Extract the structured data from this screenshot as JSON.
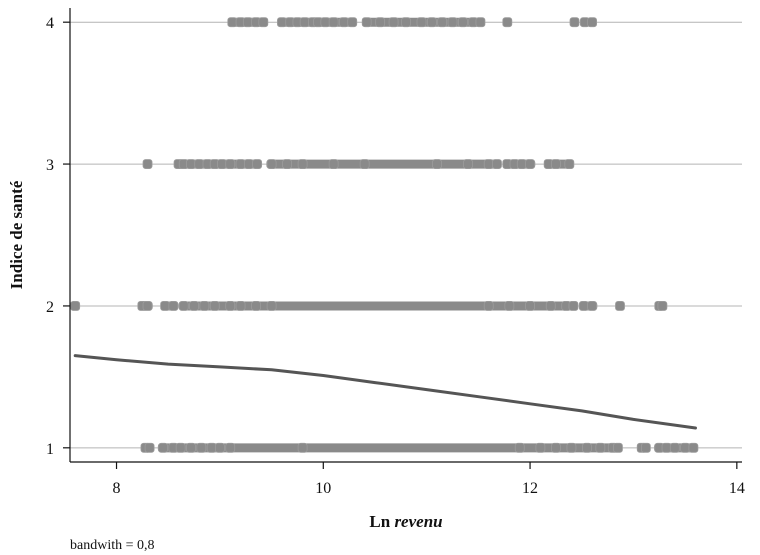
{
  "chart_data": {
    "type": "scatter",
    "xlabel": {
      "bold_part": "Ln ",
      "italic_part": "revenu"
    },
    "ylabel": "Indice de santé",
    "xlim": [
      7.55,
      14.05
    ],
    "ylim": [
      0.9,
      4.1
    ],
    "xticks": [
      8,
      10,
      12,
      14
    ],
    "yticks": [
      1,
      2,
      3,
      4
    ],
    "grid_y": true,
    "note": "bandwith = 0,8",
    "colors": {
      "points": "#8a8a8a",
      "line": "#555555",
      "grid": "#b4b4b4",
      "axis": "#111111"
    },
    "series": [
      {
        "y": 4,
        "segments": [
          [
            9.12,
            9.45
          ],
          [
            9.6,
            10.3
          ],
          [
            10.4,
            11.55
          ]
        ],
        "points": [
          9.12,
          9.2,
          9.27,
          9.35,
          9.42,
          9.6,
          9.68,
          9.75,
          9.82,
          9.9,
          9.95,
          10.02,
          10.1,
          10.2,
          10.28,
          10.42,
          10.55,
          10.68,
          10.8,
          10.95,
          11.05,
          11.15,
          11.25,
          11.35,
          11.45,
          11.52,
          11.78,
          12.43,
          12.53,
          12.6
        ]
      },
      {
        "y": 3,
        "segments": [
          [
            8.6,
            9.4
          ],
          [
            9.45,
            11.7
          ],
          [
            11.75,
            12.05
          ],
          [
            12.15,
            12.4
          ]
        ],
        "points": [
          8.3,
          8.6,
          8.65,
          8.72,
          8.8,
          8.88,
          8.95,
          9.02,
          9.1,
          9.2,
          9.28,
          9.36,
          9.5,
          9.65,
          9.8,
          10.1,
          10.4,
          11.1,
          11.4,
          11.6,
          11.68,
          11.78,
          11.85,
          11.92,
          12.0,
          12.18,
          12.25,
          12.38
        ]
      },
      {
        "y": 2,
        "segments": [
          [
            8.25,
            8.35
          ],
          [
            8.45,
            8.58
          ],
          [
            8.6,
            12.45
          ],
          [
            12.5,
            12.65
          ]
        ],
        "points": [
          7.6,
          8.25,
          8.3,
          8.47,
          8.55,
          8.65,
          8.75,
          8.85,
          8.95,
          9.1,
          9.2,
          9.35,
          9.5,
          11.6,
          11.8,
          12.0,
          12.2,
          12.35,
          12.42,
          12.52,
          12.6,
          12.87,
          13.25,
          13.28
        ]
      },
      {
        "y": 1,
        "segments": [
          [
            8.25,
            8.35
          ],
          [
            8.4,
            12.85
          ],
          [
            13.05,
            13.15
          ],
          [
            13.2,
            13.6
          ]
        ],
        "points": [
          8.28,
          8.32,
          8.45,
          8.55,
          8.62,
          8.72,
          8.82,
          8.92,
          9.0,
          9.1,
          9.8,
          11.9,
          12.1,
          12.25,
          12.4,
          12.55,
          12.68,
          12.8,
          12.85,
          13.08,
          13.12,
          13.25,
          13.32,
          13.4,
          13.5,
          13.58
        ]
      }
    ],
    "smooth_line": {
      "x": [
        7.6,
        8.0,
        8.5,
        9.0,
        9.5,
        10.0,
        10.5,
        11.0,
        11.5,
        12.0,
        12.5,
        13.0,
        13.6
      ],
      "y": [
        1.65,
        1.62,
        1.59,
        1.57,
        1.55,
        1.51,
        1.46,
        1.41,
        1.36,
        1.31,
        1.26,
        1.2,
        1.14
      ]
    }
  }
}
